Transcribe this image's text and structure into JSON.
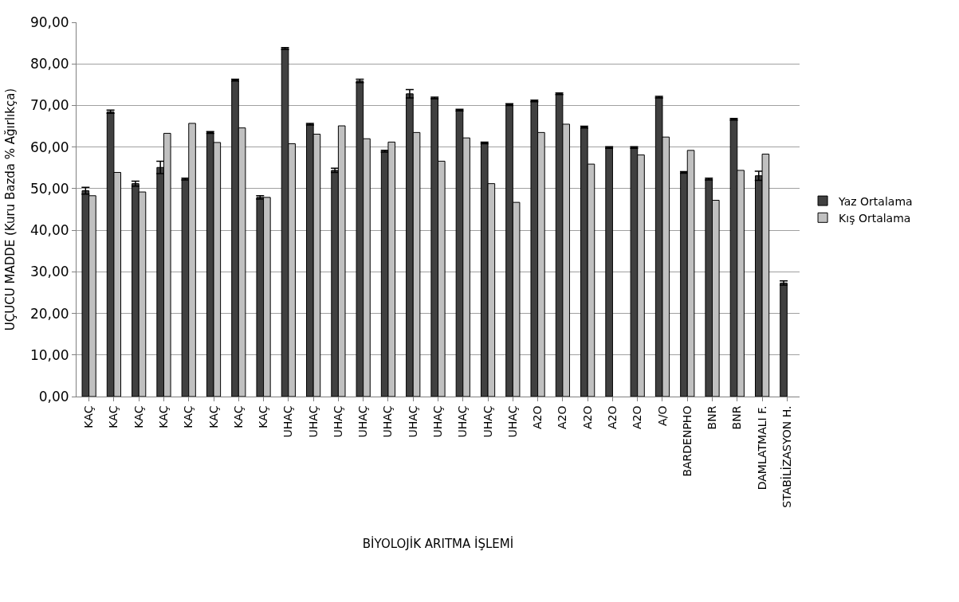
{
  "chart_data": {
    "type": "bar",
    "xlabel": "BİYOLOJİK ARITMA İŞLEMİ",
    "ylabel": "UÇUCU MADDE (Kuru Bazda % Ağırlıkça)",
    "categories": [
      "KAÇ",
      "KAÇ",
      "KAÇ",
      "KAÇ",
      "KAÇ",
      "KAÇ",
      "KAÇ",
      "KAÇ",
      "UHAÇ",
      "UHAÇ",
      "UHAÇ",
      "UHAÇ",
      "UHAÇ",
      "UHAÇ",
      "UHAÇ",
      "UHAÇ",
      "UHAÇ",
      "UHAÇ",
      "A2O",
      "A2O",
      "A2O",
      "A2O",
      "A2O",
      "A/O",
      "BARDENPHO",
      "BNR",
      "BNR",
      "DAMLATMALI F.",
      "STABİLİZASYON H."
    ],
    "series": [
      {
        "name": "Yaz Ortalama",
        "color": "#404040",
        "values": [
          49.5,
          68.5,
          51.2,
          55.1,
          52.3,
          63.5,
          76.1,
          47.9,
          83.7,
          65.5,
          54.4,
          75.9,
          59.0,
          72.8,
          71.8,
          68.9,
          61.0,
          70.2,
          71.1,
          72.8,
          64.8,
          59.9,
          59.9,
          72.0,
          53.9,
          52.3,
          66.7,
          53.1,
          27.3
        ],
        "errors": [
          0.8,
          0.4,
          0.6,
          1.5,
          0.2,
          0.2,
          0.2,
          0.4,
          0.2,
          0.2,
          0.5,
          0.4,
          0.2,
          1.0,
          0.2,
          0.2,
          0.2,
          0.2,
          0.2,
          0.2,
          0.2,
          0.2,
          0.2,
          0.2,
          0.2,
          0.2,
          0.2,
          1.1,
          0.5
        ]
      },
      {
        "name": "Kış Ortalama",
        "color": "#c0c0c0",
        "values": [
          48.3,
          53.9,
          49.2,
          63.3,
          65.7,
          61.1,
          64.6,
          47.9,
          60.8,
          63.1,
          65.1,
          62.0,
          61.2,
          63.5,
          56.6,
          62.2,
          51.2,
          46.7,
          63.5,
          65.5,
          55.9,
          null,
          58.1,
          62.4,
          59.2,
          47.2,
          54.4,
          58.3,
          null
        ]
      }
    ],
    "ylim": [
      0,
      90
    ],
    "yticks": [
      {
        "value": 0,
        "label": "0,00"
      },
      {
        "value": 10,
        "label": "10,00"
      },
      {
        "value": 20,
        "label": "20,00"
      },
      {
        "value": 30,
        "label": "30,00"
      },
      {
        "value": 40,
        "label": "40,00"
      },
      {
        "value": 50,
        "label": "50,00"
      },
      {
        "value": 60,
        "label": "60,00"
      },
      {
        "value": 70,
        "label": "70,00"
      },
      {
        "value": 80,
        "label": "80,00"
      },
      {
        "value": 90,
        "label": "90,00"
      }
    ],
    "grid": "y",
    "legend": "right"
  }
}
